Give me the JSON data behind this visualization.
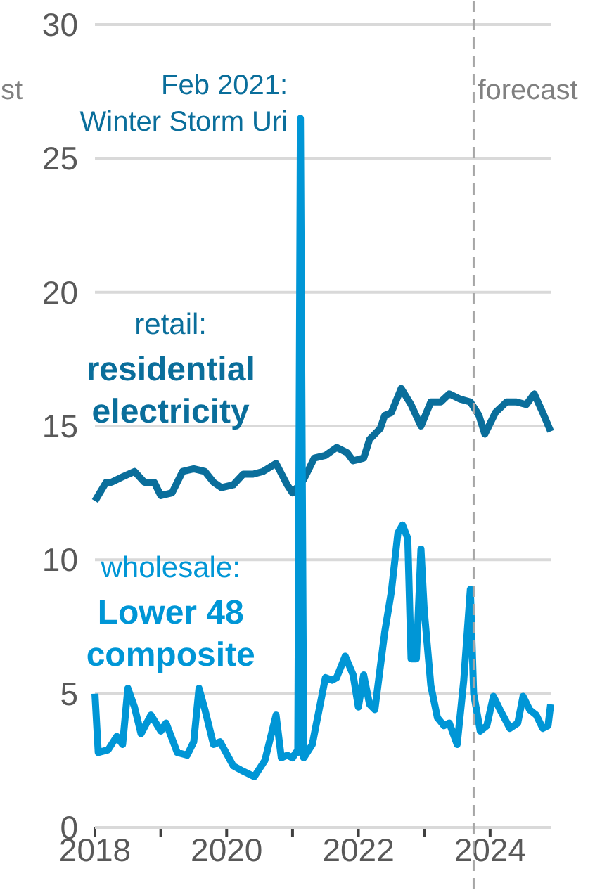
{
  "chart_data": {
    "type": "line",
    "xlim": [
      2018,
      2024.92
    ],
    "ylim": [
      0,
      30
    ],
    "xticks": [
      2018,
      {
        "value": 2019,
        "label": null
      },
      2020,
      {
        "value": 2021,
        "label": null
      },
      2022,
      {
        "value": 2023,
        "label": null
      },
      2024
    ],
    "yticks": [
      0,
      5,
      10,
      15,
      20,
      25,
      30
    ],
    "grid": "y",
    "marker": "none",
    "line_style": "solid",
    "series": [
      {
        "name": "retail:\nresidential\nelectricity",
        "color": "#0a6e9b",
        "x": [
          2018.0,
          2018.17,
          2018.25,
          2018.42,
          2018.6,
          2018.75,
          2018.9,
          2019.0,
          2019.17,
          2019.33,
          2019.5,
          2019.67,
          2019.8,
          2019.92,
          2020.1,
          2020.25,
          2020.4,
          2020.55,
          2020.75,
          2020.92,
          2021.0,
          2021.17,
          2021.33,
          2021.5,
          2021.67,
          2021.83,
          2021.92,
          2022.08,
          2022.17,
          2022.33,
          2022.4,
          2022.5,
          2022.65,
          2022.8,
          2022.95,
          2023.1,
          2023.25,
          2023.38,
          2023.55,
          2023.7,
          2023.83,
          2023.92,
          2024.08,
          2024.25,
          2024.4,
          2024.55,
          2024.67,
          2024.8,
          2024.92
        ],
        "values": [
          12.2,
          12.9,
          12.9,
          13.1,
          13.3,
          12.9,
          12.9,
          12.4,
          12.5,
          13.3,
          13.4,
          13.3,
          12.9,
          12.7,
          12.8,
          13.2,
          13.2,
          13.3,
          13.6,
          12.8,
          12.5,
          13.0,
          13.8,
          13.9,
          14.2,
          14.0,
          13.7,
          13.8,
          14.5,
          14.9,
          15.4,
          15.5,
          16.4,
          15.8,
          15.0,
          15.9,
          15.9,
          16.2,
          16.0,
          15.9,
          15.4,
          14.7,
          15.5,
          15.9,
          15.9,
          15.8,
          16.2,
          15.5,
          14.8
        ]
      },
      {
        "name": "wholesale:\nLower 48\ncomposite",
        "color": "#0096d6",
        "x": [
          2018.0,
          2018.05,
          2018.2,
          2018.33,
          2018.42,
          2018.5,
          2018.6,
          2018.7,
          2018.85,
          2019.0,
          2019.08,
          2019.25,
          2019.4,
          2019.5,
          2019.58,
          2019.67,
          2019.8,
          2019.9,
          2020.1,
          2020.25,
          2020.42,
          2020.58,
          2020.75,
          2020.83,
          2020.92,
          2021.0,
          2021.05,
          2021.08,
          2021.12,
          2021.17,
          2021.3,
          2021.42,
          2021.5,
          2021.6,
          2021.67,
          2021.8,
          2021.92,
          2022.0,
          2022.08,
          2022.17,
          2022.25,
          2022.4,
          2022.5,
          2022.6,
          2022.67,
          2022.75,
          2022.8,
          2022.88,
          2022.95,
          2023.0,
          2023.1,
          2023.2,
          2023.3,
          2023.38,
          2023.5,
          2023.6,
          2023.7,
          2023.75,
          2023.85,
          2023.95,
          2024.05,
          2024.15,
          2024.3,
          2024.42,
          2024.5,
          2024.6,
          2024.7,
          2024.8,
          2024.88,
          2024.92
        ],
        "values": [
          5.0,
          2.8,
          2.9,
          3.4,
          3.1,
          5.2,
          4.5,
          3.5,
          4.2,
          3.6,
          3.9,
          2.8,
          2.7,
          3.2,
          5.2,
          4.4,
          3.1,
          3.2,
          2.3,
          2.1,
          1.9,
          2.5,
          4.2,
          2.6,
          2.7,
          2.6,
          2.8,
          2.8,
          26.5,
          2.6,
          3.1,
          4.6,
          5.6,
          5.5,
          5.6,
          6.4,
          5.7,
          4.5,
          5.7,
          4.6,
          4.4,
          7.3,
          8.8,
          11.0,
          11.3,
          10.8,
          6.3,
          6.3,
          10.4,
          8.1,
          5.3,
          4.1,
          3.8,
          3.9,
          3.1,
          5.5,
          8.9,
          5.0,
          3.6,
          3.8,
          4.9,
          4.4,
          3.7,
          3.9,
          4.9,
          4.4,
          4.2,
          3.7,
          3.8,
          4.6
        ]
      }
    ],
    "ref_lines": [
      {
        "axis": "x",
        "value": 2023.75,
        "label": "forecast",
        "color": "#a6a6a6",
        "line_style": "dashed"
      }
    ],
    "annotations": [
      "st",
      {
        "text": "Feb 2021:\nWinter Storm Uri",
        "x": 2021.12,
        "y": 26.5
      }
    ]
  }
}
